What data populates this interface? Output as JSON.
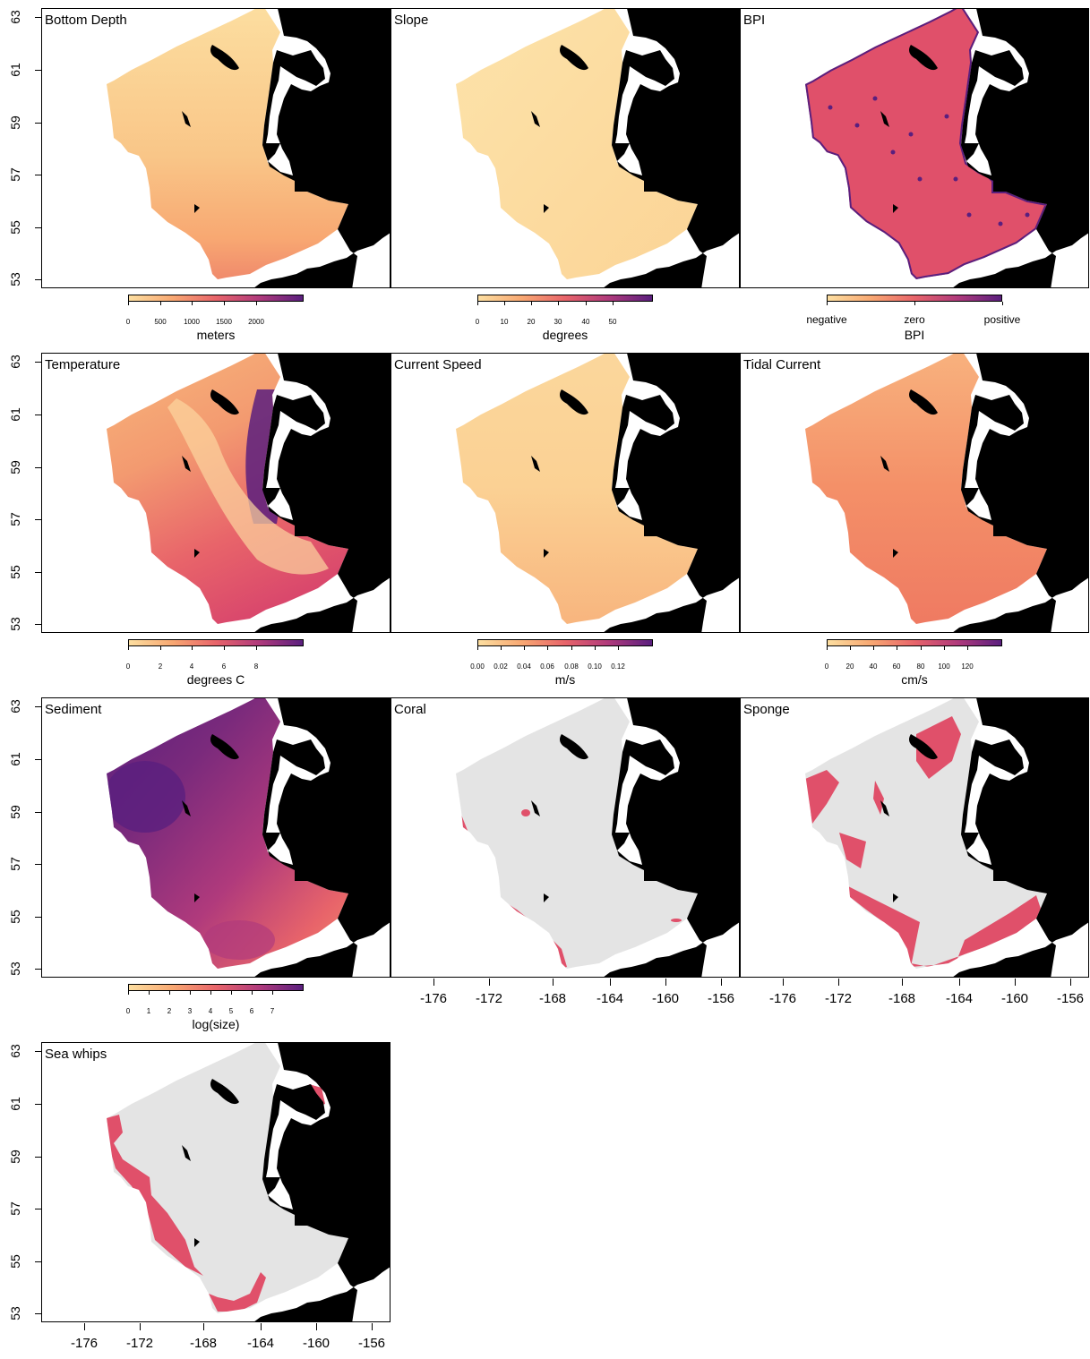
{
  "figure": {
    "y_ticks": [
      "63",
      "61",
      "59",
      "57",
      "55",
      "53"
    ],
    "x_ticks": [
      "-176",
      "-172",
      "-168",
      "-164",
      "-160",
      "-156"
    ]
  },
  "panels": [
    {
      "title": "Bottom Depth",
      "fill": "depth",
      "legend": {
        "ticks": [
          "0",
          "500",
          "1000",
          "1500",
          "2000"
        ],
        "unit": "meters"
      }
    },
    {
      "title": "Slope",
      "fill": "slope",
      "legend": {
        "ticks": [
          "0",
          "10",
          "20",
          "30",
          "40",
          "50"
        ],
        "unit": "degrees"
      }
    },
    {
      "title": "BPI",
      "fill": "bpi",
      "legend": {
        "words": [
          "negative",
          "zero",
          "positive"
        ],
        "unit": "BPI"
      }
    },
    {
      "title": "Temperature",
      "fill": "temp",
      "legend": {
        "ticks": [
          "0",
          "2",
          "4",
          "6",
          "8"
        ],
        "unit": "degrees C"
      }
    },
    {
      "title": "Current Speed",
      "fill": "curr",
      "legend": {
        "ticks": [
          "0.00",
          "0.02",
          "0.04",
          "0.06",
          "0.08",
          "0.10",
          "0.12"
        ],
        "unit": "m/s"
      }
    },
    {
      "title": "Tidal Current",
      "fill": "tidal",
      "legend": {
        "ticks": [
          "0",
          "20",
          "40",
          "60",
          "80",
          "100",
          "120"
        ],
        "unit": "cm/s"
      }
    },
    {
      "title": "Sediment",
      "fill": "sed",
      "legend": {
        "ticks": [
          "0",
          "1",
          "2",
          "3",
          "4",
          "5",
          "6",
          "7"
        ],
        "unit": "log(size)"
      }
    },
    {
      "title": "Coral",
      "fill": "coral"
    },
    {
      "title": "Sponge",
      "fill": "sponge"
    },
    {
      "title": "Sea whips",
      "fill": "whips"
    }
  ],
  "colors": {
    "land": "#000000",
    "presence": "#e0506a",
    "absence": "#e4e4e4",
    "scale": [
      "#fcdea0",
      "#f8a872",
      "#e8646a",
      "#b03a7c",
      "#5a1f7e"
    ]
  }
}
